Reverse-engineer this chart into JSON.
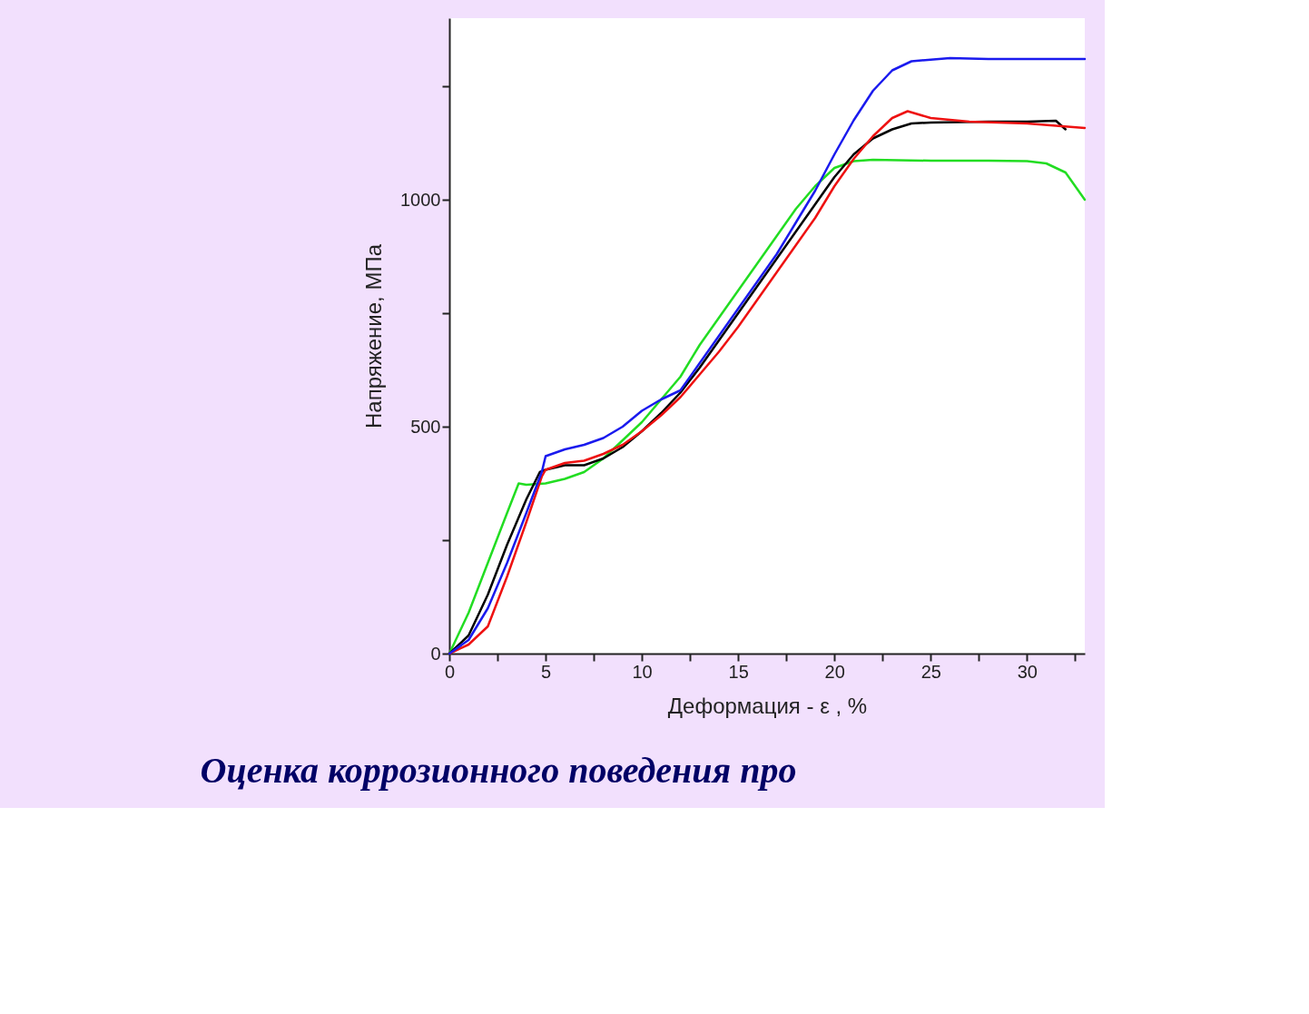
{
  "chart_data": {
    "type": "line",
    "xlabel": "Деформация - ε , %",
    "ylabel": "Напряжение, МПа",
    "xlim": [
      0,
      33
    ],
    "ylim": [
      0,
      1400
    ],
    "xticks": [
      0,
      {
        "value": 2.5,
        "label": null
      },
      5,
      {
        "value": 7.5,
        "label": null
      },
      10,
      {
        "value": 12.5,
        "label": null
      },
      15,
      {
        "value": 17.5,
        "label": null
      },
      20,
      {
        "value": 22.5,
        "label": null
      },
      25,
      {
        "value": 27.5,
        "label": null
      },
      30,
      {
        "value": 32.5,
        "label": null
      }
    ],
    "yticks": [
      0,
      {
        "value": 250,
        "label": null
      },
      500,
      {
        "value": 750,
        "label": null
      },
      1000,
      {
        "value": 1250,
        "label": null
      }
    ],
    "grid": false,
    "marker": "none",
    "line_style": "solid",
    "annotations": [
      "Оценка коррозионного поведения про"
    ],
    "series": [
      {
        "color": "#22dd22",
        "x": [
          0,
          1,
          2,
          3,
          3.6,
          4,
          5,
          6,
          7,
          8,
          9,
          10,
          11,
          12,
          13,
          14,
          15,
          16,
          17,
          18,
          19,
          20,
          21,
          22,
          25,
          28,
          30,
          31,
          32,
          33
        ],
        "values": [
          0,
          90,
          200,
          310,
          375,
          372,
          375,
          385,
          400,
          430,
          470,
          510,
          560,
          610,
          680,
          740,
          800,
          860,
          920,
          980,
          1030,
          1070,
          1085,
          1088,
          1086,
          1086,
          1085,
          1080,
          1060,
          1000
        ]
      },
      {
        "color": "#000000",
        "x": [
          0,
          1,
          2,
          3,
          4,
          4.7,
          5,
          6,
          7,
          8,
          9,
          10,
          11,
          12,
          13,
          14,
          15,
          16,
          17,
          18,
          19,
          20,
          21,
          22,
          23,
          24,
          25,
          28,
          30,
          31.5,
          32
        ],
        "values": [
          0,
          40,
          130,
          240,
          340,
          400,
          405,
          415,
          415,
          430,
          455,
          490,
          530,
          575,
          630,
          690,
          750,
          810,
          870,
          930,
          990,
          1050,
          1100,
          1135,
          1155,
          1168,
          1170,
          1172,
          1172,
          1174,
          1155
        ]
      },
      {
        "color": "#ee1111",
        "x": [
          0,
          1,
          2,
          3,
          4,
          4.8,
          5,
          6,
          7,
          8,
          9,
          10,
          11,
          12,
          13,
          14,
          15,
          16,
          17,
          18,
          19,
          20,
          21,
          22,
          23,
          23.8,
          25,
          27,
          30,
          33
        ],
        "values": [
          0,
          20,
          60,
          170,
          290,
          390,
          405,
          420,
          425,
          440,
          460,
          490,
          525,
          565,
          615,
          665,
          720,
          780,
          840,
          900,
          960,
          1030,
          1090,
          1140,
          1180,
          1195,
          1180,
          1172,
          1168,
          1158
        ]
      },
      {
        "color": "#1a1aee",
        "x": [
          0,
          1,
          2,
          3,
          4,
          4.8,
          5,
          6,
          7,
          8,
          9,
          10,
          11,
          12,
          13,
          14,
          15,
          16,
          17,
          18,
          19,
          20,
          21,
          22,
          23,
          24,
          26,
          28,
          30,
          33
        ],
        "values": [
          0,
          30,
          100,
          200,
          310,
          400,
          435,
          450,
          460,
          475,
          500,
          535,
          560,
          580,
          640,
          700,
          760,
          820,
          880,
          950,
          1020,
          1100,
          1175,
          1240,
          1285,
          1305,
          1312,
          1310,
          1310,
          1310
        ]
      }
    ]
  }
}
